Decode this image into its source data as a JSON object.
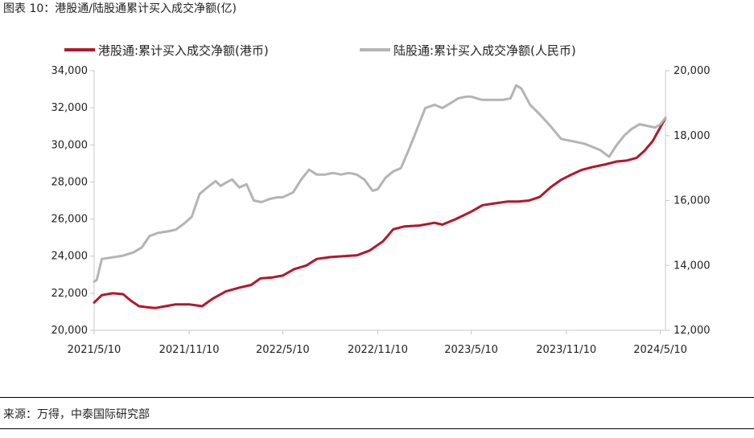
{
  "header": {
    "title": "图表 10：港股通/陆股通累计买入成交净额(亿)"
  },
  "footer": {
    "source": "来源：万得，中泰国际研究部"
  },
  "chart_data": {
    "type": "line",
    "title": "",
    "x_tick_labels": [
      "2021/5/10",
      "2021/11/10",
      "2022/5/10",
      "2022/11/10",
      "2023/5/10",
      "2023/11/10",
      "2024/5/10"
    ],
    "x_range": [
      "2021/5/10",
      "2024/5/20"
    ],
    "y_left": {
      "range": [
        20000,
        34000
      ],
      "ticks": [
        "20,000",
        "22,000",
        "24,000",
        "26,000",
        "28,000",
        "30,000",
        "32,000",
        "34,000"
      ]
    },
    "y_right": {
      "range": [
        12000,
        20000
      ],
      "ticks": [
        "12,000",
        "14,000",
        "16,000",
        "18,000",
        "20,000"
      ]
    },
    "grid": false,
    "legend_position": "top",
    "series": [
      {
        "name": "港股通:累计买入成交净额(港币)",
        "axis": "left",
        "color": "#b5162b",
        "points": [
          [
            "2021/5/10",
            21500
          ],
          [
            "2021/5/25",
            21900
          ],
          [
            "2021/6/15",
            22000
          ],
          [
            "2021/7/5",
            21950
          ],
          [
            "2021/7/20",
            21600
          ],
          [
            "2021/8/5",
            21300
          ],
          [
            "2021/8/20",
            21250
          ],
          [
            "2021/9/5",
            21200
          ],
          [
            "2021/9/25",
            21300
          ],
          [
            "2021/10/15",
            21400
          ],
          [
            "2021/11/10",
            21400
          ],
          [
            "2021/12/5",
            21300
          ],
          [
            "2021/12/25",
            21700
          ],
          [
            "2022/1/20",
            22100
          ],
          [
            "2022/2/15",
            22300
          ],
          [
            "2022/3/10",
            22450
          ],
          [
            "2022/3/28",
            22800
          ],
          [
            "2022/4/20",
            22850
          ],
          [
            "2022/5/10",
            22950
          ],
          [
            "2022/6/1",
            23300
          ],
          [
            "2022/6/25",
            23500
          ],
          [
            "2022/7/15",
            23850
          ],
          [
            "2022/8/10",
            23950
          ],
          [
            "2022/9/5",
            24000
          ],
          [
            "2022/10/1",
            24050
          ],
          [
            "2022/10/25",
            24300
          ],
          [
            "2022/11/20",
            24800
          ],
          [
            "2022/12/10",
            25450
          ],
          [
            "2022/12/31",
            25600
          ],
          [
            "2023/1/30",
            25650
          ],
          [
            "2023/2/28",
            25800
          ],
          [
            "2023/3/15",
            25700
          ],
          [
            "2023/4/10",
            26000
          ],
          [
            "2023/5/10",
            26400
          ],
          [
            "2023/6/1",
            26750
          ],
          [
            "2023/6/25",
            26850
          ],
          [
            "2023/7/20",
            26950
          ],
          [
            "2023/8/10",
            26950
          ],
          [
            "2023/8/30",
            27000
          ],
          [
            "2023/9/20",
            27200
          ],
          [
            "2023/10/10",
            27700
          ],
          [
            "2023/10/30",
            28100
          ],
          [
            "2023/11/20",
            28400
          ],
          [
            "2023/12/10",
            28650
          ],
          [
            "2023/12/30",
            28800
          ],
          [
            "2024/1/25",
            28950
          ],
          [
            "2024/2/15",
            29100
          ],
          [
            "2024/3/5",
            29150
          ],
          [
            "2024/3/25",
            29300
          ],
          [
            "2024/4/10",
            29700
          ],
          [
            "2024/4/25",
            30200
          ],
          [
            "2024/5/10",
            30950
          ],
          [
            "2024/5/20",
            31450
          ]
        ]
      },
      {
        "name": "陆股通:累计买入成交净额(人民币)",
        "axis": "right",
        "color": "#b4b4b4",
        "points": [
          [
            "2021/5/10",
            13500
          ],
          [
            "2021/5/15",
            13550
          ],
          [
            "2021/5/25",
            14200
          ],
          [
            "2021/6/15",
            14250
          ],
          [
            "2021/7/5",
            14300
          ],
          [
            "2021/7/25",
            14400
          ],
          [
            "2021/8/10",
            14550
          ],
          [
            "2021/8/25",
            14900
          ],
          [
            "2021/9/10",
            15000
          ],
          [
            "2021/9/30",
            15050
          ],
          [
            "2021/10/15",
            15100
          ],
          [
            "2021/11/1",
            15300
          ],
          [
            "2021/11/15",
            15500
          ],
          [
            "2021/11/30",
            16200
          ],
          [
            "2021/12/15",
            16400
          ],
          [
            "2021/12/31",
            16600
          ],
          [
            "2022/1/10",
            16450
          ],
          [
            "2022/1/20",
            16550
          ],
          [
            "2022/2/1",
            16650
          ],
          [
            "2022/2/15",
            16400
          ],
          [
            "2022/3/1",
            16500
          ],
          [
            "2022/3/15",
            16000
          ],
          [
            "2022/3/30",
            15950
          ],
          [
            "2022/4/15",
            16050
          ],
          [
            "2022/4/30",
            16100
          ],
          [
            "2022/5/10",
            16100
          ],
          [
            "2022/5/30",
            16250
          ],
          [
            "2022/6/15",
            16650
          ],
          [
            "2022/6/30",
            16950
          ],
          [
            "2022/7/15",
            16800
          ],
          [
            "2022/7/31",
            16800
          ],
          [
            "2022/8/15",
            16850
          ],
          [
            "2022/8/31",
            16800
          ],
          [
            "2022/9/15",
            16850
          ],
          [
            "2022/9/30",
            16800
          ],
          [
            "2022/10/15",
            16650
          ],
          [
            "2022/10/31",
            16300
          ],
          [
            "2022/11/10",
            16350
          ],
          [
            "2022/11/25",
            16700
          ],
          [
            "2022/12/10",
            16900
          ],
          [
            "2022/12/25",
            17000
          ],
          [
            "2023/1/10",
            17600
          ],
          [
            "2023/1/25",
            18200
          ],
          [
            "2023/2/10",
            18850
          ],
          [
            "2023/2/28",
            18950
          ],
          [
            "2023/3/15",
            18850
          ],
          [
            "2023/3/31",
            19000
          ],
          [
            "2023/4/15",
            19150
          ],
          [
            "2023/4/30",
            19200
          ],
          [
            "2023/5/10",
            19200
          ],
          [
            "2023/5/31",
            19100
          ],
          [
            "2023/6/20",
            19100
          ],
          [
            "2023/7/10",
            19100
          ],
          [
            "2023/7/25",
            19150
          ],
          [
            "2023/8/5",
            19550
          ],
          [
            "2023/8/15",
            19450
          ],
          [
            "2023/9/1",
            18950
          ],
          [
            "2023/9/20",
            18650
          ],
          [
            "2023/10/10",
            18300
          ],
          [
            "2023/10/31",
            17900
          ],
          [
            "2023/11/15",
            17850
          ],
          [
            "2023/11/30",
            17800
          ],
          [
            "2023/12/15",
            17750
          ],
          [
            "2023/12/31",
            17650
          ],
          [
            "2024/1/15",
            17550
          ],
          [
            "2024/2/1",
            17350
          ],
          [
            "2024/2/15",
            17700
          ],
          [
            "2024/3/1",
            18000
          ],
          [
            "2024/3/15",
            18200
          ],
          [
            "2024/3/31",
            18350
          ],
          [
            "2024/4/15",
            18300
          ],
          [
            "2024/4/30",
            18250
          ],
          [
            "2024/5/10",
            18350
          ],
          [
            "2024/5/20",
            18550
          ]
        ]
      }
    ]
  }
}
